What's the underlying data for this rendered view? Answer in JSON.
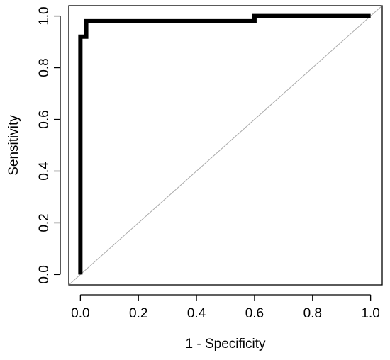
{
  "chart_data": {
    "type": "line",
    "title": "",
    "xlabel": "1 - Specificity",
    "ylabel": "Sensitivity",
    "xlim": [
      -0.04,
      1.04
    ],
    "ylim": [
      -0.04,
      1.04
    ],
    "x_ticks": [
      "0.0",
      "0.2",
      "0.4",
      "0.6",
      "0.8",
      "1.0"
    ],
    "y_ticks": [
      "0.0",
      "0.2",
      "0.4",
      "0.6",
      "0.8",
      "1.0"
    ],
    "grid": false,
    "legend": "none",
    "series": [
      {
        "points": [
          [
            0.0,
            0.0
          ],
          [
            0.0,
            0.92
          ],
          [
            0.02,
            0.92
          ],
          [
            0.02,
            0.98
          ],
          [
            0.6,
            0.98
          ],
          [
            0.6,
            1.0
          ],
          [
            1.0,
            1.0
          ]
        ],
        "color": "#000000"
      }
    ],
    "reference_line": {
      "points": [
        [
          -0.04,
          -0.04
        ],
        [
          1.04,
          1.04
        ]
      ],
      "color": "#aaaaaa"
    }
  }
}
